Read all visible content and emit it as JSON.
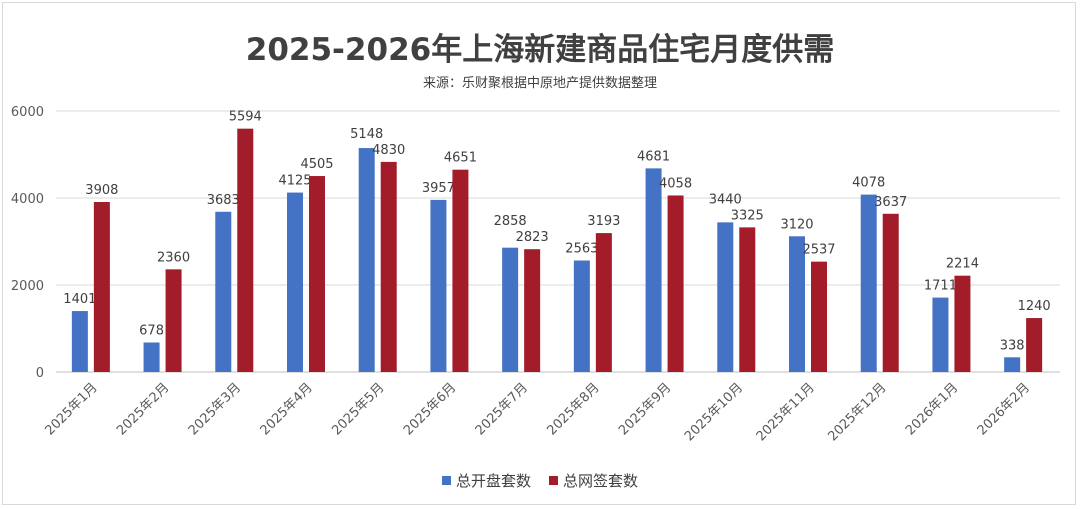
{
  "chart_data": {
    "type": "bar",
    "title": "2025-2026年上海新建商品住宅月度供需",
    "subtitle": "来源：乐财聚根据中原地产提供数据整理",
    "categories": [
      "2025年1月",
      "2025年2月",
      "2025年3月",
      "2025年4月",
      "2025年5月",
      "2025年6月",
      "2025年7月",
      "2025年8月",
      "2025年9月",
      "2025年10月",
      "2025年11月",
      "2025年12月",
      "2026年1月",
      "2026年2月"
    ],
    "series": [
      {
        "name": "总开盘套数",
        "color": "#4472c4",
        "values": [
          1401,
          678,
          3683,
          4125,
          5148,
          3957,
          2858,
          2563,
          4681,
          3440,
          3120,
          4078,
          1711,
          338
        ]
      },
      {
        "name": "总网签套数",
        "color": "#a31c2a",
        "values": [
          3908,
          2360,
          5594,
          4505,
          4830,
          4651,
          2823,
          3193,
          4058,
          3325,
          2537,
          3637,
          2214,
          1240
        ]
      }
    ],
    "ylim": [
      0,
      6000
    ],
    "yticks": [
      0,
      2000,
      4000,
      6000
    ],
    "grid": true,
    "legend": "bottom",
    "xlabel": "",
    "ylabel": ""
  }
}
